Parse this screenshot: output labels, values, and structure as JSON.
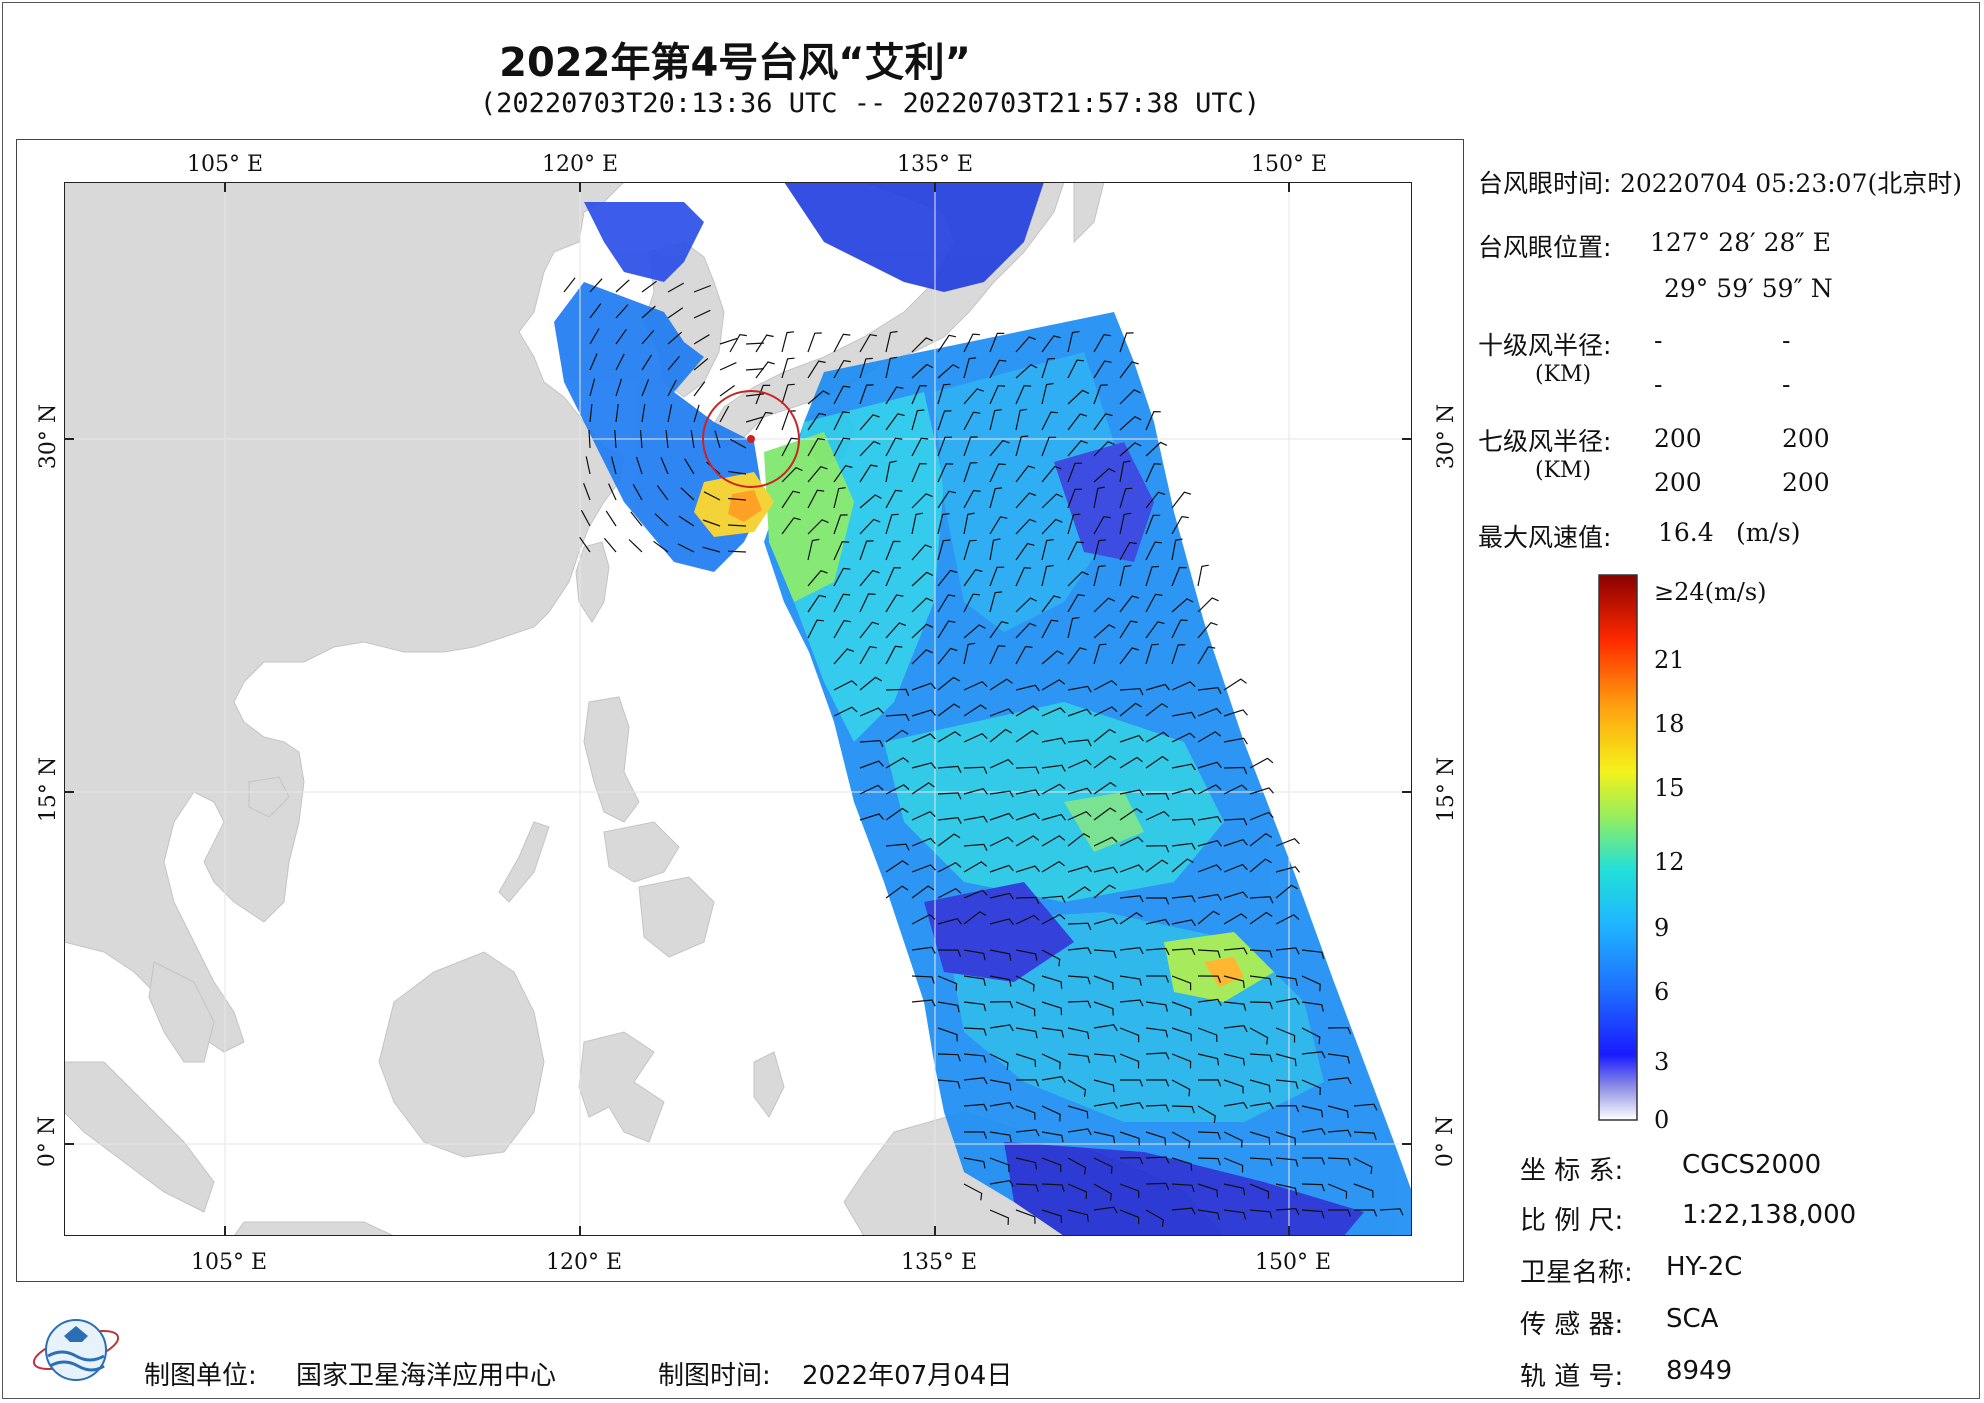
{
  "header": {
    "title": "2022年第4号台风“艾利”",
    "subtitle": "(20220703T20:13:36 UTC -- 20220703T21:57:38 UTC)"
  },
  "map": {
    "lon_ticks": [
      "105° E",
      "120° E",
      "135° E",
      "150° E"
    ],
    "lat_ticks": [
      "30° N",
      "15° N",
      "0° N"
    ],
    "lon_range": [
      98,
      155
    ],
    "lat_range": [
      -4,
      41
    ],
    "typhoon_center": {
      "lon": 127.47,
      "lat": 30.0
    },
    "land_color": "#d9d9d9",
    "circle_color": "#cc2222"
  },
  "info": {
    "eye_time_label": "台风眼时间:",
    "eye_time_value": "20220704 05:23:07(北京时)",
    "eye_pos_label": "台风眼位置:",
    "eye_lon": "127° 28′ 28″ E",
    "eye_lat": "29° 59′ 59″ N",
    "r10_label": "十级风半径:",
    "r10_unit": "(KM)",
    "r10_values": [
      "-",
      "-",
      "-",
      "-"
    ],
    "r7_label": "七级风半径:",
    "r7_unit": "(KM)",
    "r7_values": [
      "200",
      "200",
      "200",
      "200"
    ],
    "max_wind_label": "最大风速值:",
    "max_wind_value": "16.4",
    "max_wind_unit": "(m/s)"
  },
  "colorbar": {
    "labels": [
      "≥24(m/s)",
      "21",
      "18",
      "15",
      "12",
      "9",
      "6",
      "3",
      "0"
    ],
    "stops": [
      "#ffffff",
      "#8f8fe6",
      "#1a1aff",
      "#1e6fff",
      "#1fb6ff",
      "#22e0d8",
      "#9aee5a",
      "#f4f21a",
      "#ffa010",
      "#ff2a00",
      "#8a0000"
    ]
  },
  "meta": {
    "crs_label": "坐 标 系:",
    "crs_value": "CGCS2000",
    "scale_label": "比 例 尺:",
    "scale_value": "1:22,138,000",
    "sat_label": "卫星名称:",
    "sat_value": "HY-2C",
    "sensor_label": "传 感 器:",
    "sensor_value": "SCA",
    "orbit_label": "轨 道 号:",
    "orbit_value": "8949"
  },
  "footer": {
    "org_label": "制图单位:",
    "org_value": "国家卫星海洋应用中心",
    "date_label": "制图时间:",
    "date_value": "2022年07月04日"
  }
}
